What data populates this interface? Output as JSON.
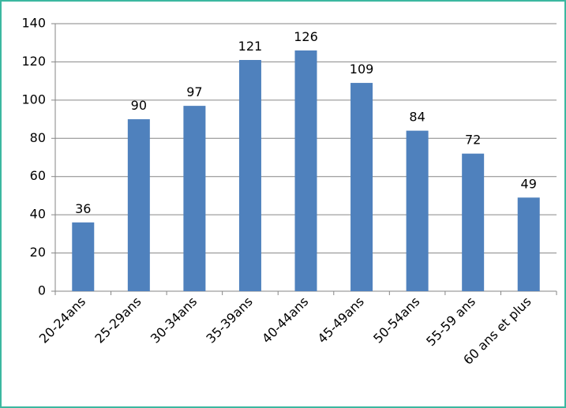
{
  "chart_data": {
    "type": "bar",
    "categories": [
      "20-24ans",
      "25-29ans",
      "30-34ans",
      "35-39ans",
      "40-44ans",
      "45-49ans",
      "50-54ans",
      "55-59 ans",
      "60 ans et plus"
    ],
    "values": [
      36,
      90,
      97,
      121,
      126,
      109,
      84,
      72,
      49
    ],
    "color": "#4f81bd",
    "ylim": [
      0,
      140
    ],
    "yticks": [
      0,
      20,
      40,
      60,
      80,
      100,
      120,
      140
    ],
    "grid": true
  }
}
